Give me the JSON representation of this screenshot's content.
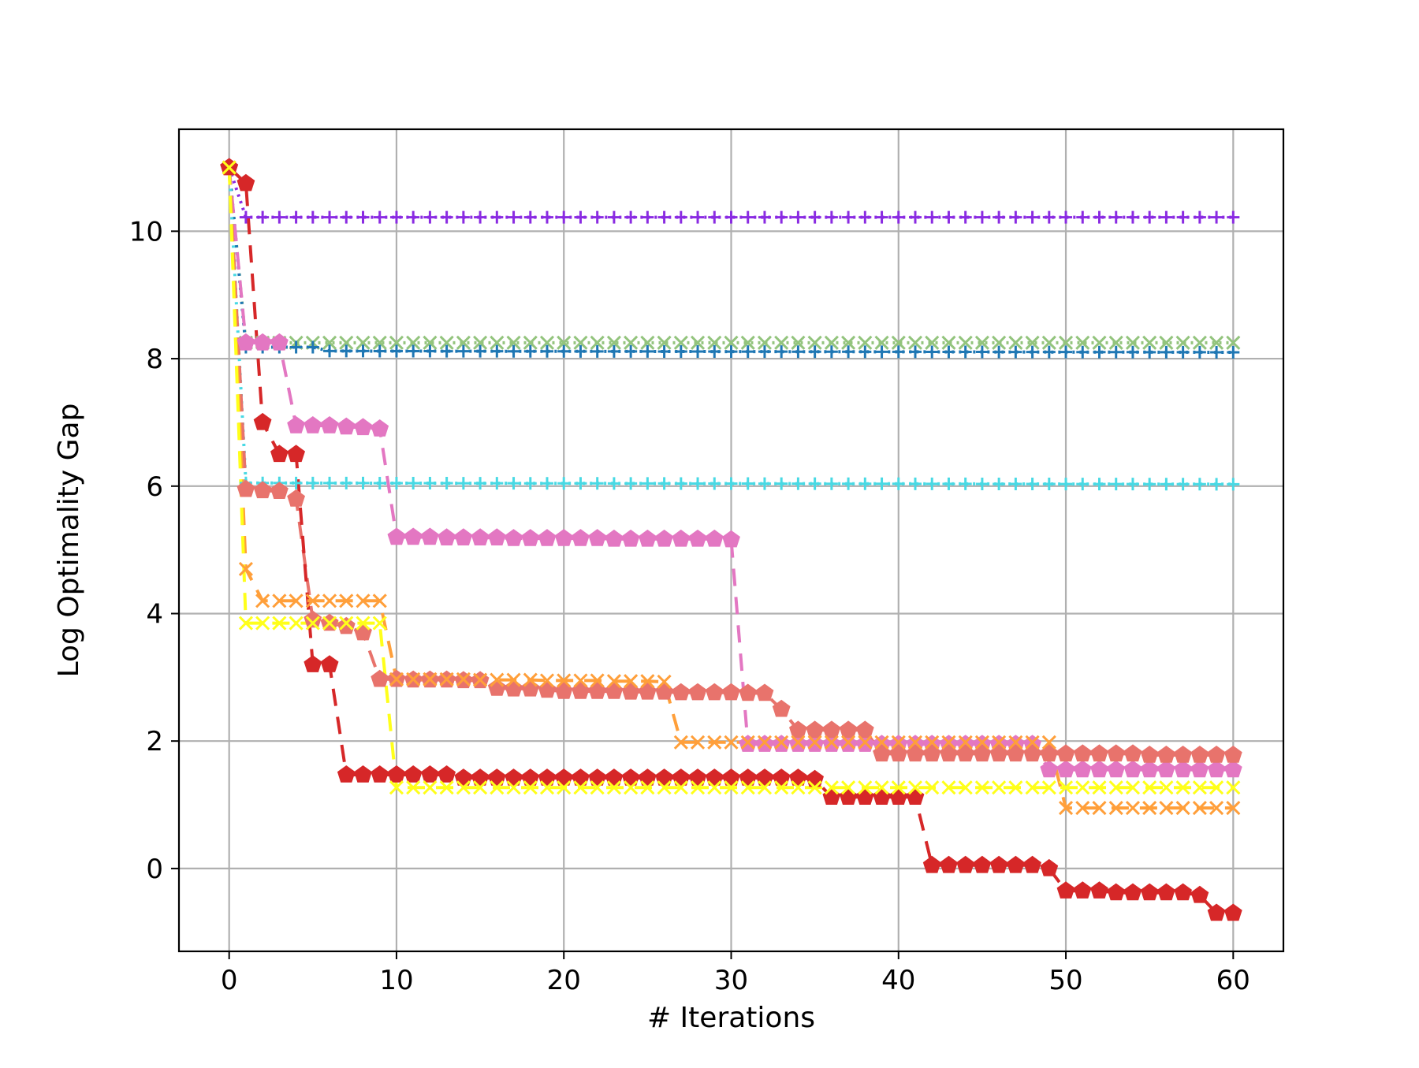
{
  "chart_data": {
    "type": "line",
    "title": "",
    "xlabel": "# Iterations",
    "ylabel": "Log Optimality Gap",
    "xlim": [
      -3,
      63
    ],
    "ylim": [
      -1.3,
      11.6
    ],
    "xticks": [
      0,
      10,
      20,
      30,
      40,
      50,
      60
    ],
    "yticks": [
      0,
      2,
      4,
      6,
      8,
      10
    ],
    "grid": true,
    "legend": "none",
    "series": [
      {
        "color": "#8a2be2",
        "marker": "plus",
        "dash": "dot",
        "x": [
          0,
          1,
          60
        ],
        "values": [
          11.0,
          10.22,
          10.22
        ]
      },
      {
        "color": "#93c47d",
        "marker": "x",
        "dash": "dot",
        "x": [
          0,
          1,
          60
        ],
        "values": [
          11.0,
          8.25,
          8.25
        ]
      },
      {
        "color": "#1f77b4",
        "marker": "plus",
        "dash": "dot",
        "x": [
          0,
          1,
          2,
          3,
          4,
          5,
          6,
          60
        ],
        "values": [
          11.0,
          8.18,
          8.18,
          8.18,
          8.18,
          8.18,
          8.12,
          8.1
        ]
      },
      {
        "color": "#48d9e4",
        "marker": "plus",
        "dash": "dot",
        "x": [
          0,
          1,
          60
        ],
        "values": [
          11.0,
          6.05,
          6.03
        ]
      },
      {
        "color": "#e377c2",
        "marker": "pentagon",
        "dash": "dash",
        "x": [
          0,
          1,
          2,
          3,
          4,
          5,
          6,
          7,
          8,
          9,
          10,
          11,
          12,
          13,
          14,
          15,
          16,
          17,
          18,
          19,
          20,
          21,
          22,
          23,
          24,
          25,
          26,
          27,
          28,
          29,
          30,
          31,
          32,
          33,
          34,
          35,
          36,
          37,
          38,
          39,
          40,
          41,
          42,
          43,
          44,
          45,
          46,
          47,
          48,
          49,
          50,
          51,
          52,
          53,
          54,
          55,
          56,
          57,
          58,
          59,
          60
        ],
        "values": [
          11.0,
          8.25,
          8.25,
          8.25,
          6.95,
          6.95,
          6.95,
          6.93,
          6.92,
          6.9,
          5.2,
          5.2,
          5.2,
          5.19,
          5.19,
          5.19,
          5.19,
          5.18,
          5.18,
          5.18,
          5.18,
          5.18,
          5.18,
          5.17,
          5.17,
          5.17,
          5.17,
          5.17,
          5.17,
          5.17,
          5.16,
          1.95,
          1.95,
          1.95,
          1.95,
          1.95,
          1.95,
          1.95,
          1.95,
          1.95,
          1.95,
          1.95,
          1.95,
          1.95,
          1.95,
          1.95,
          1.95,
          1.95,
          1.95,
          1.55,
          1.55,
          1.55,
          1.55,
          1.55,
          1.55,
          1.55,
          1.55,
          1.55,
          1.55,
          1.55,
          1.55
        ]
      },
      {
        "color": "#e8736c",
        "marker": "pentagon",
        "dash": "dash",
        "x": [
          0,
          1,
          2,
          3,
          4,
          5,
          6,
          7,
          8,
          9,
          10,
          11,
          12,
          13,
          14,
          15,
          16,
          17,
          18,
          19,
          20,
          21,
          22,
          23,
          24,
          25,
          26,
          27,
          28,
          29,
          30,
          31,
          32,
          33,
          34,
          35,
          36,
          37,
          38,
          39,
          40,
          41,
          42,
          43,
          44,
          45,
          46,
          47,
          48,
          49,
          50,
          51,
          52,
          53,
          54,
          55,
          56,
          57,
          58,
          59,
          60
        ],
        "values": [
          11.0,
          5.95,
          5.93,
          5.92,
          5.8,
          3.9,
          3.85,
          3.8,
          3.7,
          2.97,
          2.97,
          2.96,
          2.96,
          2.96,
          2.95,
          2.95,
          2.83,
          2.82,
          2.82,
          2.8,
          2.78,
          2.78,
          2.78,
          2.78,
          2.77,
          2.77,
          2.77,
          2.76,
          2.76,
          2.76,
          2.76,
          2.75,
          2.75,
          2.5,
          2.17,
          2.17,
          2.17,
          2.17,
          2.17,
          1.8,
          1.8,
          1.8,
          1.8,
          1.8,
          1.8,
          1.8,
          1.8,
          1.8,
          1.8,
          1.8,
          1.8,
          1.8,
          1.8,
          1.8,
          1.8,
          1.78,
          1.78,
          1.78,
          1.78,
          1.78,
          1.78
        ]
      },
      {
        "color": "#d62728",
        "marker": "pentagon",
        "dash": "dash",
        "x": [
          0,
          1,
          2,
          3,
          4,
          5,
          6,
          7,
          8,
          9,
          10,
          11,
          12,
          13,
          14,
          15,
          16,
          17,
          18,
          19,
          20,
          21,
          22,
          23,
          24,
          25,
          26,
          27,
          28,
          29,
          30,
          31,
          32,
          33,
          34,
          35,
          36,
          37,
          38,
          39,
          40,
          41,
          42,
          43,
          44,
          45,
          46,
          47,
          48,
          49,
          50,
          51,
          52,
          53,
          54,
          55,
          56,
          57,
          58,
          59,
          60
        ],
        "values": [
          11.0,
          10.75,
          7.0,
          6.5,
          6.5,
          3.2,
          3.2,
          1.47,
          1.47,
          1.47,
          1.47,
          1.47,
          1.47,
          1.47,
          1.42,
          1.42,
          1.42,
          1.42,
          1.42,
          1.42,
          1.42,
          1.42,
          1.42,
          1.42,
          1.42,
          1.42,
          1.42,
          1.42,
          1.42,
          1.42,
          1.42,
          1.42,
          1.42,
          1.42,
          1.42,
          1.4,
          1.12,
          1.12,
          1.12,
          1.12,
          1.12,
          1.12,
          0.05,
          0.05,
          0.05,
          0.05,
          0.05,
          0.05,
          0.05,
          0.0,
          -0.35,
          -0.35,
          -0.35,
          -0.38,
          -0.38,
          -0.38,
          -0.38,
          -0.38,
          -0.42,
          -0.7,
          -0.7
        ]
      },
      {
        "color": "#ff9f3a",
        "marker": "x",
        "dash": "dash",
        "x": [
          0,
          1,
          2,
          3,
          4,
          5,
          6,
          7,
          8,
          9,
          10,
          11,
          12,
          13,
          14,
          15,
          16,
          17,
          18,
          19,
          20,
          21,
          22,
          23,
          24,
          25,
          26,
          27,
          28,
          29,
          30,
          31,
          32,
          33,
          34,
          35,
          36,
          37,
          38,
          39,
          40,
          41,
          42,
          43,
          44,
          45,
          46,
          47,
          48,
          49,
          50,
          51,
          52,
          53,
          54,
          55,
          56,
          57,
          58,
          59,
          60
        ],
        "values": [
          11.0,
          4.7,
          4.2,
          4.2,
          4.2,
          4.2,
          4.2,
          4.2,
          4.2,
          4.2,
          2.97,
          2.97,
          2.97,
          2.97,
          2.97,
          2.96,
          2.96,
          2.96,
          2.96,
          2.95,
          2.95,
          2.95,
          2.95,
          2.94,
          2.94,
          2.94,
          2.93,
          1.98,
          1.98,
          1.98,
          1.98,
          1.98,
          1.98,
          1.98,
          1.98,
          1.98,
          1.98,
          1.98,
          1.98,
          1.98,
          1.98,
          1.98,
          1.98,
          1.98,
          1.98,
          1.98,
          1.98,
          1.98,
          1.98,
          1.98,
          0.95,
          0.95,
          0.95,
          0.95,
          0.95,
          0.95,
          0.95,
          0.95,
          0.95,
          0.95,
          0.95
        ]
      },
      {
        "color": "#ffff1a",
        "marker": "x",
        "dash": "dash",
        "x": [
          0,
          1,
          2,
          3,
          4,
          5,
          6,
          7,
          8,
          9,
          10,
          11,
          12,
          13,
          14,
          15,
          16,
          17,
          18,
          19,
          20,
          21,
          22,
          23,
          24,
          25,
          26,
          27,
          28,
          29,
          30,
          31,
          32,
          33,
          34,
          35,
          36,
          37,
          38,
          39,
          40,
          41,
          42,
          43,
          44,
          45,
          46,
          47,
          48,
          49,
          50,
          51,
          52,
          53,
          54,
          55,
          56,
          57,
          58,
          59,
          60
        ],
        "values": [
          11.0,
          3.85,
          3.85,
          3.85,
          3.85,
          3.85,
          3.85,
          3.85,
          3.85,
          3.85,
          1.27,
          1.27,
          1.27,
          1.27,
          1.27,
          1.27,
          1.27,
          1.27,
          1.27,
          1.27,
          1.27,
          1.27,
          1.27,
          1.27,
          1.27,
          1.27,
          1.27,
          1.27,
          1.27,
          1.27,
          1.27,
          1.27,
          1.27,
          1.27,
          1.27,
          1.27,
          1.27,
          1.27,
          1.27,
          1.27,
          1.27,
          1.27,
          1.27,
          1.27,
          1.27,
          1.27,
          1.27,
          1.27,
          1.27,
          1.27,
          1.27,
          1.27,
          1.27,
          1.27,
          1.27,
          1.27,
          1.27,
          1.27,
          1.27,
          1.27,
          1.27
        ]
      }
    ]
  }
}
